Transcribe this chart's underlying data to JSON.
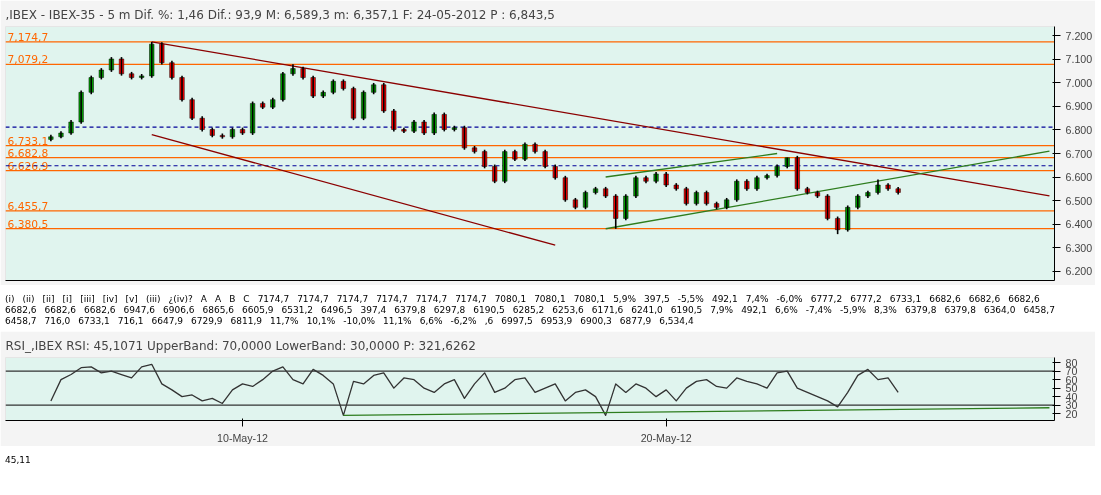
{
  "chart_data": [
    {
      "type": "candlestick",
      "title": ",IBEX - IBEX-35 - 5 m Dif. %: 1,46 Dif.: 93,9 M: 6,589,3 m: 6,357,1 F: 24-05-2012 P : 6,843,5",
      "categories": [
        null,
        null,
        null,
        null,
        null,
        null,
        null,
        null,
        null,
        null,
        null,
        null,
        null,
        null,
        null,
        null,
        null,
        null,
        null,
        null,
        null,
        null,
        null,
        null,
        null,
        null,
        null,
        null,
        null,
        null,
        null,
        null,
        null,
        null,
        null,
        null,
        null,
        null,
        null,
        null,
        null,
        null,
        null,
        null,
        null,
        null,
        null,
        null,
        null,
        null,
        null,
        null,
        null,
        null,
        null,
        null,
        null,
        null,
        null,
        null,
        null,
        null,
        null,
        null,
        null,
        null,
        null,
        null,
        null,
        null,
        null,
        null,
        null,
        null,
        null,
        null,
        null,
        null,
        null,
        null,
        null,
        null,
        null,
        null,
        null,
        null,
        null,
        null,
        null,
        null,
        null,
        null,
        null,
        null,
        null,
        null,
        null,
        null,
        null,
        null
      ],
      "ohlc": [
        [
          6760,
          6780,
          6752,
          6771
        ],
        [
          6771,
          6795,
          6765,
          6787
        ],
        [
          6787,
          6842,
          6780,
          6834
        ],
        [
          6834,
          6968,
          6826,
          6960
        ],
        [
          6960,
          7031,
          6952,
          7023
        ],
        [
          7023,
          7063,
          7015,
          7055
        ],
        [
          7055,
          7110,
          7047,
          7102
        ],
        [
          7102,
          7110,
          7031,
          7039
        ],
        [
          7039,
          7047,
          7015,
          7023
        ],
        [
          7023,
          7038,
          7015,
          7030
        ],
        [
          7030,
          7174.7,
          7022,
          7165
        ],
        [
          7165,
          7173,
          7078,
          7086
        ],
        [
          7086,
          7094,
          7015,
          7023
        ],
        [
          7023,
          7031,
          6921,
          6929
        ],
        [
          6929,
          6937,
          6842,
          6850
        ],
        [
          6850,
          6858,
          6794,
          6802
        ],
        [
          6802,
          6810,
          6769,
          6777
        ],
        [
          6777,
          6785,
          6763,
          6771
        ],
        [
          6771,
          6810,
          6763,
          6802
        ],
        [
          6802,
          6810,
          6779,
          6787
        ],
        [
          6787,
          6921,
          6779,
          6913
        ],
        [
          6913,
          6921,
          6889,
          6897
        ],
        [
          6897,
          6937,
          6889,
          6929
        ],
        [
          6929,
          7047,
          6921,
          7039
        ],
        [
          7039,
          7080,
          7031,
          7061
        ],
        [
          7061,
          7069,
          7015,
          7023
        ],
        [
          7023,
          7031,
          6936,
          6944
        ],
        [
          6944,
          6968,
          6936,
          6960
        ],
        [
          6960,
          7015,
          6952,
          7007
        ],
        [
          7007,
          7015,
          6968,
          6976
        ],
        [
          6976,
          6984,
          6842,
          6850
        ],
        [
          6850,
          6968,
          6842,
          6960
        ],
        [
          6960,
          7000,
          6952,
          6992
        ],
        [
          6992,
          7000,
          6873,
          6881
        ],
        [
          6881,
          6889,
          6794,
          6802
        ],
        [
          6802,
          6810,
          6787,
          6795
        ],
        [
          6795,
          6842,
          6787,
          6834
        ],
        [
          6834,
          6842,
          6779,
          6787
        ],
        [
          6787,
          6874,
          6779,
          6866
        ],
        [
          6866,
          6874,
          6794,
          6802
        ],
        [
          6802,
          6818,
          6794,
          6810
        ],
        [
          6810,
          6818,
          6716,
          6724
        ],
        [
          6724,
          6732,
          6700,
          6708
        ],
        [
          6708,
          6716,
          6637,
          6645
        ],
        [
          6645,
          6653,
          6574,
          6582
        ],
        [
          6582,
          6716,
          6574,
          6708
        ],
        [
          6708,
          6716,
          6668,
          6676
        ],
        [
          6676,
          6747,
          6668,
          6739
        ],
        [
          6739,
          6747,
          6700,
          6708
        ],
        [
          6708,
          6716,
          6637,
          6645
        ],
        [
          6645,
          6653,
          6589,
          6597
        ],
        [
          6597,
          6605,
          6495,
          6503
        ],
        [
          6503,
          6511,
          6463,
          6471
        ],
        [
          6471,
          6542,
          6463,
          6534
        ],
        [
          6534,
          6558,
          6526,
          6550
        ],
        [
          6550,
          6558,
          6511,
          6519
        ],
        [
          6519,
          6527,
          6379.8,
          6424
        ],
        [
          6424,
          6527,
          6416,
          6519
        ],
        [
          6519,
          6605,
          6511,
          6597
        ],
        [
          6597,
          6605,
          6574,
          6582
        ],
        [
          6582,
          6621,
          6574,
          6613
        ],
        [
          6613,
          6621,
          6558,
          6566
        ],
        [
          6566,
          6574,
          6542,
          6550
        ],
        [
          6550,
          6558,
          6479,
          6487
        ],
        [
          6487,
          6542,
          6479,
          6534
        ],
        [
          6534,
          6542,
          6479,
          6487
        ],
        [
          6487,
          6495,
          6463,
          6471
        ],
        [
          6471,
          6511,
          6463,
          6503
        ],
        [
          6503,
          6590,
          6495,
          6582
        ],
        [
          6582,
          6590,
          6542,
          6550
        ],
        [
          6550,
          6605,
          6542,
          6597
        ],
        [
          6597,
          6614,
          6589,
          6606
        ],
        [
          6606,
          6653,
          6598,
          6645
        ],
        [
          6645,
          6682.6,
          6637,
          6682
        ],
        [
          6682,
          6690,
          6542,
          6550
        ],
        [
          6550,
          6558,
          6526,
          6534
        ],
        [
          6534,
          6542,
          6511,
          6519
        ],
        [
          6519,
          6527,
          6416,
          6424
        ],
        [
          6424,
          6432,
          6357.1,
          6376
        ],
        [
          6376,
          6479,
          6368,
          6471
        ],
        [
          6471,
          6527,
          6463,
          6519
        ],
        [
          6519,
          6542,
          6511,
          6534
        ],
        [
          6534,
          6589.3,
          6526,
          6566
        ],
        [
          6566,
          6574,
          6542,
          6550
        ],
        [
          6550,
          6558,
          6526,
          6534.4
        ],
        null,
        null,
        null,
        null,
        null,
        null,
        null,
        null,
        null,
        null,
        null,
        null,
        null,
        null,
        null
      ],
      "series": [
        {
          "type": "line",
          "color": "#8b0000",
          "values": [
            null,
            null,
            null,
            null,
            null,
            null,
            null,
            null,
            null,
            null,
            7175,
            null,
            null,
            null,
            null,
            null,
            null,
            null,
            null,
            null,
            null,
            null,
            null,
            null,
            null,
            null,
            null,
            null,
            null,
            null,
            null,
            null,
            null,
            null,
            null,
            null,
            null,
            null,
            null,
            null,
            null,
            null,
            null,
            null,
            null,
            null,
            null,
            null,
            null,
            null,
            null,
            null,
            null,
            null,
            null,
            null,
            null,
            null,
            null,
            null,
            null,
            null,
            null,
            null,
            null,
            null,
            null,
            null,
            null,
            null,
            null,
            null,
            null,
            null,
            null,
            null,
            null,
            null,
            null,
            null,
            null,
            null,
            null,
            null,
            null,
            null,
            null,
            null,
            null,
            null,
            null,
            null,
            null,
            null,
            null,
            null,
            null,
            null,
            null,
            6520
          ]
        },
        {
          "type": "line",
          "color": "#8b0000",
          "values": [
            null,
            null,
            null,
            null,
            null,
            null,
            null,
            null,
            null,
            null,
            6780,
            null,
            null,
            null,
            null,
            null,
            null,
            null,
            null,
            null,
            null,
            null,
            null,
            null,
            null,
            null,
            null,
            null,
            null,
            null,
            null,
            null,
            null,
            null,
            null,
            null,
            null,
            null,
            null,
            null,
            null,
            null,
            null,
            null,
            null,
            null,
            null,
            null,
            null,
            null,
            6310,
            null,
            null,
            null,
            null,
            null,
            null,
            null,
            null,
            null,
            null,
            null,
            null,
            null,
            null,
            null,
            null,
            null,
            null,
            null,
            null,
            null,
            null,
            null,
            null,
            null,
            null,
            null,
            null,
            null,
            null,
            null,
            null,
            null,
            null,
            null,
            null,
            null,
            null,
            null,
            null,
            null,
            null,
            null,
            null,
            null,
            null,
            null,
            null,
            null
          ]
        },
        {
          "type": "line",
          "color": "#2e7d1e",
          "values": [
            null,
            null,
            null,
            null,
            null,
            null,
            null,
            null,
            null,
            null,
            null,
            null,
            null,
            null,
            null,
            null,
            null,
            null,
            null,
            null,
            null,
            null,
            null,
            null,
            null,
            null,
            null,
            null,
            null,
            null,
            null,
            null,
            null,
            null,
            null,
            null,
            null,
            null,
            null,
            null,
            null,
            null,
            null,
            null,
            null,
            null,
            null,
            null,
            null,
            null,
            null,
            null,
            null,
            null,
            null,
            6380,
            null,
            null,
            null,
            null,
            null,
            null,
            null,
            null,
            null,
            null,
            null,
            null,
            null,
            null,
            null,
            null,
            null,
            null,
            null,
            null,
            null,
            null,
            null,
            null,
            null,
            null,
            null,
            null,
            null,
            null,
            null,
            null,
            null,
            null,
            null,
            null,
            null,
            null,
            null,
            null,
            null,
            null,
            null,
            6710
          ]
        },
        {
          "type": "line",
          "color": "#2e7d1e",
          "values": [
            null,
            null,
            null,
            null,
            null,
            null,
            null,
            null,
            null,
            null,
            null,
            null,
            null,
            null,
            null,
            null,
            null,
            null,
            null,
            null,
            null,
            null,
            null,
            null,
            null,
            null,
            null,
            null,
            null,
            null,
            null,
            null,
            null,
            null,
            null,
            null,
            null,
            null,
            null,
            null,
            null,
            null,
            null,
            null,
            null,
            null,
            null,
            null,
            null,
            null,
            null,
            null,
            null,
            null,
            null,
            6600,
            null,
            null,
            null,
            null,
            null,
            null,
            null,
            null,
            null,
            null,
            null,
            null,
            null,
            null,
            null,
            null,
            6700,
            null,
            null,
            null,
            null,
            null,
            null,
            null,
            null,
            null,
            null,
            null,
            null,
            null,
            null,
            null,
            null,
            null,
            null,
            null,
            null,
            null,
            null,
            null,
            null,
            null,
            null,
            null
          ]
        }
      ],
      "ylim": [
        6160,
        7240
      ],
      "yticks": [
        {
          "value": 6200,
          "label": "6.200"
        },
        {
          "value": 6300,
          "label": "6.300"
        },
        {
          "value": 6400,
          "label": "6.400"
        },
        {
          "value": 6500,
          "label": "6.500"
        },
        {
          "value": 6600,
          "label": "6.600"
        },
        {
          "value": 6700,
          "label": "6.700"
        },
        {
          "value": 6800,
          "label": "6.800"
        },
        {
          "value": 6900,
          "label": "6.900"
        },
        {
          "value": 7000,
          "label": "7.000"
        },
        {
          "value": 7100,
          "label": "7.100"
        },
        {
          "value": 7200,
          "label": "7.200"
        }
      ],
      "grid": false,
      "ref_lines": [
        {
          "axis": "y",
          "value": 7174.7,
          "label": "7,174,7",
          "color": "#ff6600"
        },
        {
          "axis": "y",
          "value": 7079.2,
          "label": "7,079,2",
          "color": "#ff6600"
        },
        {
          "axis": "y",
          "value": 6733.1,
          "label": "6,733,1",
          "color": "#ff6600"
        },
        {
          "axis": "y",
          "value": 6682.8,
          "label": "6,682,8",
          "color": "#ff6600"
        },
        {
          "axis": "y",
          "value": 6626.9,
          "label": "6,626,9",
          "color": "#ff6600"
        },
        {
          "axis": "y",
          "value": 6455.7,
          "label": "6,455,7",
          "color": "#ff6600"
        },
        {
          "axis": "y",
          "value": 6380.5,
          "label": "6,380,5",
          "color": "#ff6600"
        },
        {
          "axis": "y",
          "value": 6812,
          "color": "#000099",
          "line_style": "dashed"
        },
        {
          "axis": "y",
          "value": 6647.9,
          "color": "#000099",
          "line_style": "dashed"
        }
      ],
      "annotations": [
        "(i)",
        "(ii)",
        "[ii]",
        "[i]",
        "[iii]",
        "[iv]",
        "[v]",
        "(iii)",
        "¿(iv)?",
        "A",
        "A",
        "B",
        "C",
        "7174,7",
        "7174,7",
        "7174,7",
        "7174,7",
        "7174,7",
        "7174,7",
        "7080,1",
        "7080,1",
        "7080,1",
        "5,9%",
        "397,5",
        "-5,5%",
        "492,1",
        "7,4%",
        "-6,0%",
        "6777,2",
        "6777,2",
        "6733,1",
        "6682,6",
        "6682,6",
        "6682,6",
        "6682,6",
        "6682,6",
        "6682,6",
        "6947,6",
        "6906,6",
        "6865,6",
        "6605,9",
        "6531,2",
        "6496,5",
        "397,4",
        "6379,8",
        "6297,8",
        "6190,5",
        "6285,2",
        "6253,6",
        "6171,6",
        "6241,0",
        "6190,5",
        "7,9%",
        "492,1",
        "6,6%",
        "-7,4%",
        "-5,9%",
        "8,3%",
        "6379,8",
        "6379,8",
        "6364,0",
        "6458,7",
        "6458,7",
        "716,0",
        "6733,1",
        "716,1",
        "6647,9",
        "6729,9",
        "6811,9",
        "11,7%",
        "10,1%",
        "-10,0%",
        "11,1%",
        "6,6%",
        "-6,2%",
        ",6",
        "6997,5",
        "6953,9",
        "6900,3",
        "6877,9",
        "6,534,4"
      ]
    },
    {
      "type": "line",
      "title": "RSI_,IBEX RSI: 45,1071 UpperBand: 70,0000 LowerBand: 30,0000 P: 321,6262",
      "categories": [
        null,
        null,
        null,
        null,
        null,
        null,
        null,
        null,
        null,
        null,
        null,
        null,
        null,
        null,
        null,
        null,
        null,
        null,
        null,
        "10-May-12",
        null,
        null,
        null,
        null,
        null,
        null,
        null,
        null,
        null,
        null,
        null,
        null,
        null,
        null,
        null,
        null,
        null,
        null,
        null,
        null,
        null,
        null,
        null,
        null,
        null,
        null,
        null,
        null,
        null,
        null,
        null,
        null,
        null,
        null,
        null,
        null,
        null,
        null,
        null,
        null,
        null,
        "20-May-12",
        null,
        null,
        null,
        null,
        null,
        null,
        null,
        null,
        null,
        null,
        null,
        null,
        null,
        null,
        null,
        null,
        null,
        null,
        null,
        null,
        null,
        null,
        null,
        null,
        null,
        null,
        null,
        null,
        null,
        null,
        null,
        null,
        null,
        null,
        null,
        null,
        null,
        null
      ],
      "series": [
        {
          "color": "#333333",
          "values": [
            35,
            60,
            66,
            74,
            75,
            68,
            70,
            66,
            62,
            75,
            78,
            55,
            48,
            40,
            42,
            35,
            38,
            32,
            48,
            55,
            52,
            60,
            70,
            75,
            60,
            55,
            72,
            65,
            55,
            18,
            58,
            55,
            65,
            68,
            50,
            62,
            60,
            50,
            45,
            55,
            60,
            38,
            55,
            68,
            45,
            50,
            60,
            62,
            45,
            50,
            55,
            35,
            45,
            48,
            40,
            18,
            55,
            45,
            55,
            50,
            40,
            48,
            35,
            50,
            58,
            60,
            52,
            50,
            62,
            58,
            55,
            50,
            68,
            70,
            50,
            45,
            40,
            35,
            28,
            45,
            65,
            72,
            60,
            62,
            45,
            null,
            null,
            null,
            null,
            null,
            null,
            null,
            null,
            null,
            null,
            null,
            null,
            null,
            null,
            null
          ]
        },
        {
          "color": "#2e7d1e",
          "values": [
            null,
            null,
            null,
            null,
            null,
            null,
            null,
            null,
            null,
            null,
            null,
            null,
            null,
            null,
            null,
            null,
            null,
            null,
            null,
            null,
            null,
            null,
            null,
            null,
            null,
            null,
            null,
            null,
            null,
            18,
            null,
            null,
            null,
            null,
            null,
            null,
            null,
            null,
            null,
            null,
            null,
            null,
            null,
            null,
            null,
            null,
            null,
            null,
            null,
            null,
            null,
            null,
            null,
            null,
            null,
            null,
            null,
            null,
            null,
            null,
            null,
            null,
            null,
            null,
            null,
            null,
            null,
            null,
            null,
            null,
            null,
            null,
            null,
            null,
            null,
            null,
            null,
            null,
            null,
            null,
            null,
            null,
            null,
            null,
            null,
            null,
            null,
            null,
            null,
            null,
            null,
            null,
            null,
            null,
            null,
            null,
            null,
            null,
            null,
            27
          ]
        }
      ],
      "ylim": [
        12,
        86
      ],
      "yticks": [
        20,
        30,
        40,
        50,
        60,
        70,
        80
      ],
      "grid": false,
      "ref_lines": [
        {
          "axis": "y",
          "value": 70,
          "color": "#333333"
        },
        {
          "axis": "y",
          "value": 30,
          "color": "#333333"
        }
      ],
      "annotations": [
        "45,11"
      ]
    }
  ]
}
